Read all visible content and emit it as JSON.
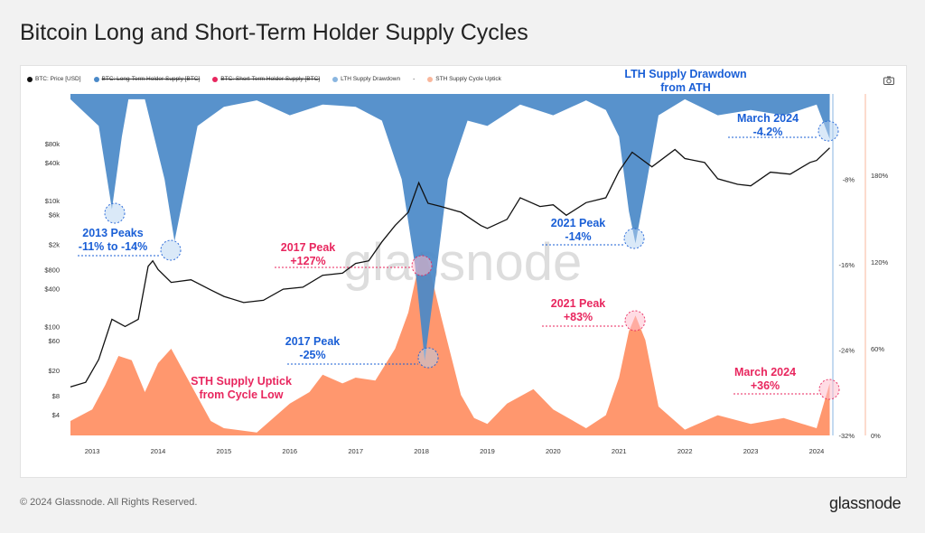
{
  "title": "Bitcoin Long and Short-Term Holder Supply Cycles",
  "footer": "© 2024 Glassnode. All Rights Reserved.",
  "logo": "glassnode",
  "watermark": "glassnode",
  "colors": {
    "price": "#111111",
    "lth": "#4a89c8",
    "sth": "#ff8c5e",
    "blue_text": "#1a5fd6",
    "red_text": "#e8265e"
  },
  "legend": [
    {
      "label": "BTC: Price [USD]",
      "color": "#111111",
      "struck": false
    },
    {
      "label": "BTC: Long-Term Holder Supply [BTC]",
      "color": "#4a89c8",
      "struck": true
    },
    {
      "label": "BTC: Short-Term Holder Supply [BTC]",
      "color": "#e8265e",
      "struck": true
    },
    {
      "label": "LTH Supply Drawdown",
      "color": "#8ab6e0",
      "struck": false
    },
    {
      "label": "-",
      "color": "",
      "struck": false
    },
    {
      "label": "STH Supply Cycle Uptick",
      "color": "#f9b79c",
      "struck": false
    }
  ],
  "chart_data": {
    "type": "area",
    "x_ticks": [
      "2013",
      "2014",
      "2015",
      "2016",
      "2017",
      "2018",
      "2019",
      "2020",
      "2021",
      "2022",
      "2023",
      "2024"
    ],
    "left_axis_ticks": [
      "$80k",
      "$40k",
      "$10k",
      "$6k",
      "$2k",
      "$800",
      "$400",
      "$100",
      "$60",
      "$20",
      "$8",
      "$4"
    ],
    "mid_axis_ticks": [
      "-8%",
      "-16%",
      "-24%",
      "-32%"
    ],
    "right_axis_ticks": [
      "180%",
      "120%",
      "60%",
      "0%"
    ],
    "left_axis_scale": "log",
    "series": [
      {
        "name": "BTC: Price [USD]",
        "x": [
          2012.67,
          2012.9,
          2013.1,
          2013.3,
          2013.5,
          2013.7,
          2013.85,
          2013.92,
          2014.0,
          2014.2,
          2014.5,
          2014.8,
          2015.0,
          2015.3,
          2015.6,
          2015.9,
          2016.2,
          2016.5,
          2016.8,
          2017.0,
          2017.2,
          2017.4,
          2017.6,
          2017.8,
          2017.96,
          2018.1,
          2018.3,
          2018.6,
          2018.9,
          2019.0,
          2019.3,
          2019.5,
          2019.8,
          2020.0,
          2020.2,
          2020.5,
          2020.8,
          2021.0,
          2021.2,
          2021.5,
          2021.85,
          2022.0,
          2022.3,
          2022.5,
          2022.8,
          2023.0,
          2023.3,
          2023.6,
          2023.9,
          2024.0,
          2024.2
        ],
        "values": [
          11,
          13,
          30,
          130,
          100,
          130,
          900,
          1100,
          800,
          500,
          550,
          380,
          300,
          240,
          260,
          390,
          420,
          650,
          700,
          1000,
          1100,
          2200,
          4000,
          6500,
          19000,
          9000,
          8000,
          6500,
          4000,
          3600,
          5000,
          11000,
          8000,
          8500,
          5800,
          9200,
          11000,
          29000,
          58000,
          34000,
          64000,
          46000,
          40000,
          22000,
          18000,
          17000,
          28000,
          26000,
          40000,
          43000,
          68000
        ]
      },
      {
        "name": "LTH Supply Drawdown",
        "x": [
          2012.67,
          2013.1,
          2013.3,
          2013.45,
          2013.55,
          2013.8,
          2014.1,
          2014.25,
          2014.6,
          2015.0,
          2015.5,
          2016.0,
          2016.5,
          2017.0,
          2017.4,
          2017.7,
          2017.9,
          2018.05,
          2018.2,
          2018.4,
          2018.7,
          2019.0,
          2019.5,
          2020.0,
          2020.5,
          2020.8,
          2021.0,
          2021.15,
          2021.25,
          2021.4,
          2021.6,
          2022.0,
          2022.5,
          2023.0,
          2023.5,
          2024.0,
          2024.2
        ],
        "values": [
          -0.5,
          -3.0,
          -10.8,
          -4.0,
          -0.5,
          -0.5,
          -8.0,
          -13.8,
          -3.0,
          -1.2,
          -0.6,
          -2.0,
          -1.0,
          -1.2,
          -2.5,
          -8.0,
          -16.0,
          -25.0,
          -18.0,
          -8.0,
          -2.5,
          -3.0,
          -1.0,
          -2.0,
          -0.6,
          -1.5,
          -4.0,
          -11.0,
          -14.0,
          -9.0,
          -2.0,
          -0.5,
          -2.0,
          -1.5,
          -2.0,
          -1.0,
          -4.2
        ]
      },
      {
        "name": "STH Supply Cycle Uptick",
        "x": [
          2012.67,
          2013.0,
          2013.2,
          2013.4,
          2013.6,
          2013.8,
          2014.0,
          2014.2,
          2014.5,
          2014.8,
          2015.0,
          2015.5,
          2016.0,
          2016.3,
          2016.5,
          2016.8,
          2017.0,
          2017.3,
          2017.6,
          2017.8,
          2018.0,
          2018.1,
          2018.3,
          2018.6,
          2018.8,
          2019.0,
          2019.3,
          2019.7,
          2020.0,
          2020.5,
          2020.8,
          2021.0,
          2021.15,
          2021.25,
          2021.4,
          2021.6,
          2022.0,
          2022.5,
          2023.0,
          2023.5,
          2024.0,
          2024.2
        ],
        "values": [
          10,
          18,
          35,
          55,
          52,
          30,
          50,
          60,
          35,
          10,
          5,
          2,
          22,
          30,
          42,
          36,
          40,
          38,
          60,
          85,
          127,
          120,
          82,
          28,
          12,
          8,
          22,
          32,
          18,
          5,
          14,
          40,
          72,
          83,
          66,
          20,
          4,
          14,
          8,
          12,
          5,
          36
        ]
      }
    ]
  },
  "annotations": [
    {
      "id": "lth-ath",
      "lines": [
        "LTH Supply Drawdown",
        "from ATH"
      ],
      "color": "blue"
    },
    {
      "id": "m24-lth",
      "lines": [
        "March 2024",
        "-4.2%"
      ],
      "color": "blue"
    },
    {
      "id": "p2013",
      "lines": [
        "2013 Peaks",
        "-11% to -14%"
      ],
      "color": "blue"
    },
    {
      "id": "p2021-lth",
      "lines": [
        "2021 Peak",
        "-14%"
      ],
      "color": "blue"
    },
    {
      "id": "p2017-sth",
      "lines": [
        "2017 Peak",
        "+127%"
      ],
      "color": "red"
    },
    {
      "id": "p2021-sth",
      "lines": [
        "2021 Peak",
        "+83%"
      ],
      "color": "red"
    },
    {
      "id": "p2017-lth",
      "lines": [
        "2017 Peak",
        "-25%"
      ],
      "color": "blue"
    },
    {
      "id": "sth-uptick",
      "lines": [
        "STH Supply Uptick",
        "from Cycle Low"
      ],
      "color": "red"
    },
    {
      "id": "m24-sth",
      "lines": [
        "March 2024",
        "+36%"
      ],
      "color": "red"
    }
  ]
}
